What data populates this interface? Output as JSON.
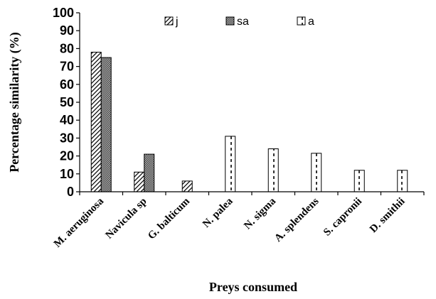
{
  "chart_data": {
    "type": "bar",
    "title": "",
    "xlabel": "Preys consumed",
    "ylabel": "Percentage similarity (%)",
    "ylim": [
      0,
      100
    ],
    "yticks": [
      0,
      10,
      20,
      30,
      40,
      50,
      60,
      70,
      80,
      90,
      100
    ],
    "grid": false,
    "legend_position": "top",
    "categories": [
      "M. aeruginosa",
      "Navicula sp",
      "G. balticum",
      "N. palea",
      "N. sigma",
      "A. splendens",
      "S. capronii",
      "D. smithii"
    ],
    "series": [
      {
        "name": "j",
        "pattern": "diagonal-wave",
        "values": [
          78,
          11,
          6,
          0,
          0,
          0,
          0,
          0
        ]
      },
      {
        "name": "sa",
        "pattern": "dense-dots",
        "values": [
          75,
          21,
          0,
          0,
          0,
          0,
          0,
          0
        ]
      },
      {
        "name": "a",
        "pattern": "vertical-dashes",
        "values": [
          0,
          0,
          0,
          31,
          24,
          21.5,
          12,
          12
        ]
      }
    ]
  }
}
